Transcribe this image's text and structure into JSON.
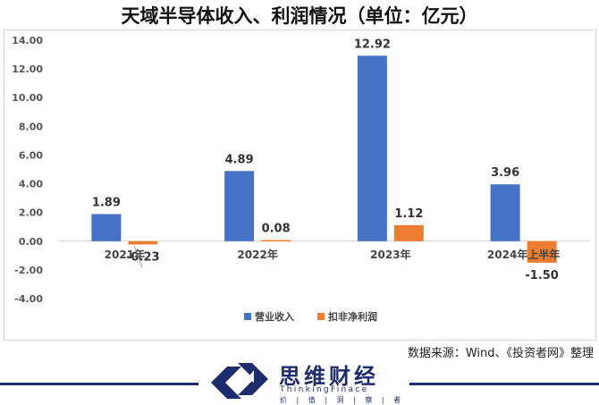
{
  "title": "天域半导体收入、利润情况（单位：亿元）",
  "source": "数据来源：Wind、《投资者网》整理",
  "brand": {
    "name": "思维财经",
    "sub": "ThinkingFinace",
    "slogan": "价 | 值 | 洞 | 察 | 者"
  },
  "colors": {
    "revenue": "#4472C4",
    "profit": "#ED7D31",
    "navy": "#1f2c6b"
  },
  "chart_data": {
    "type": "bar",
    "title": "天域半导体收入、利润情况（单位：亿元）",
    "categories": [
      "2021年",
      "2022年",
      "2023年",
      "2024年上半年"
    ],
    "series": [
      {
        "name": "营业收入",
        "values": [
          1.89,
          4.89,
          12.92,
          3.96
        ],
        "labels": [
          "1.89",
          "4.89",
          "12.92",
          "3.96"
        ]
      },
      {
        "name": "扣非净利润",
        "values": [
          -0.23,
          0.08,
          1.12,
          -1.5
        ],
        "labels": [
          "-0.23",
          "0.08",
          "1.12",
          "-1.50"
        ]
      }
    ],
    "yticks": [
      "14.00",
      "12.00",
      "10.00",
      "8.00",
      "6.00",
      "4.00",
      "2.00",
      "0.00",
      "-2.00",
      "-4.00"
    ],
    "ylim": [
      -4,
      14
    ],
    "xlabel": "",
    "ylabel": "",
    "grid": false,
    "legend": "bottom"
  }
}
